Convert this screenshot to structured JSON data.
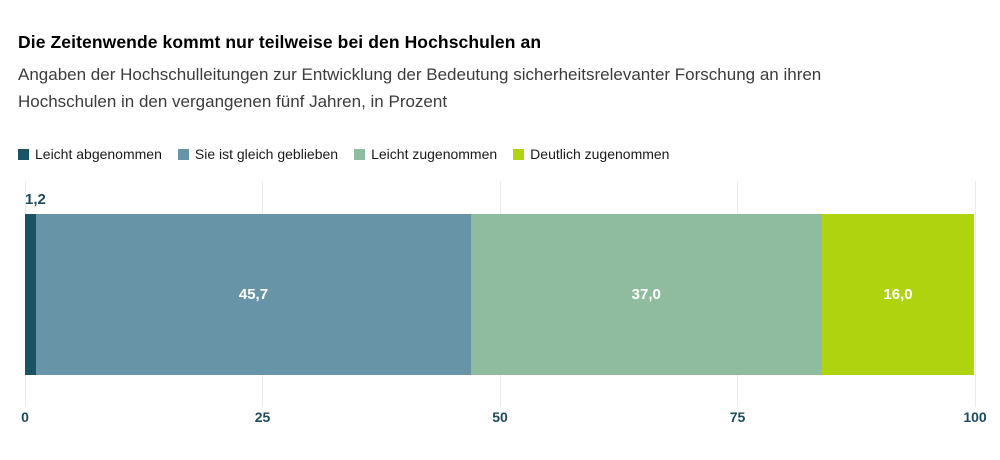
{
  "chart_data": {
    "type": "bar",
    "orientation": "horizontal-stacked",
    "title": "Die Zeitenwende kommt nur teilweise bei den Hochschulen an",
    "subtitle_line1": "Angaben der Hochschulleitungen zur Entwicklung der Bedeutung sicherheitsrelevanter Forschung an ihren",
    "subtitle_line2": "Hochschulen in den vergangenen fünf Jahren, in Prozent",
    "unit": "Prozent",
    "legend_position": "top",
    "grid": true,
    "xlim": [
      0,
      100
    ],
    "xticks": [
      "0",
      "25",
      "50",
      "75",
      "100"
    ],
    "series": [
      {
        "name": "Leicht abgenommen",
        "value": 1.2,
        "display": "1,2",
        "color": "#1A5364",
        "label_position": "above",
        "label_color": "#1D4B5F"
      },
      {
        "name": "Sie ist gleich geblieben",
        "value": 45.7,
        "display": "45,7",
        "color": "#6794A6",
        "label_position": "inside",
        "label_color": "#FFFFFF"
      },
      {
        "name": "Leicht zugenommen",
        "value": 37.0,
        "display": "37,0",
        "color": "#8FBC9F",
        "label_position": "inside",
        "label_color": "#FFFFFF"
      },
      {
        "name": "Deutlich zugenommen",
        "value": 16.0,
        "display": "16,0",
        "color": "#AFD30F",
        "label_position": "inside",
        "label_color": "#FFFFFF"
      }
    ],
    "colors": {
      "tick_label": "#1D4B5F",
      "gridline": "#ECEAE6",
      "title": "#000000",
      "subtitle": "#3C3C3C",
      "legend_text": "#1A1A1A",
      "background": "#FFFFFF"
    }
  }
}
